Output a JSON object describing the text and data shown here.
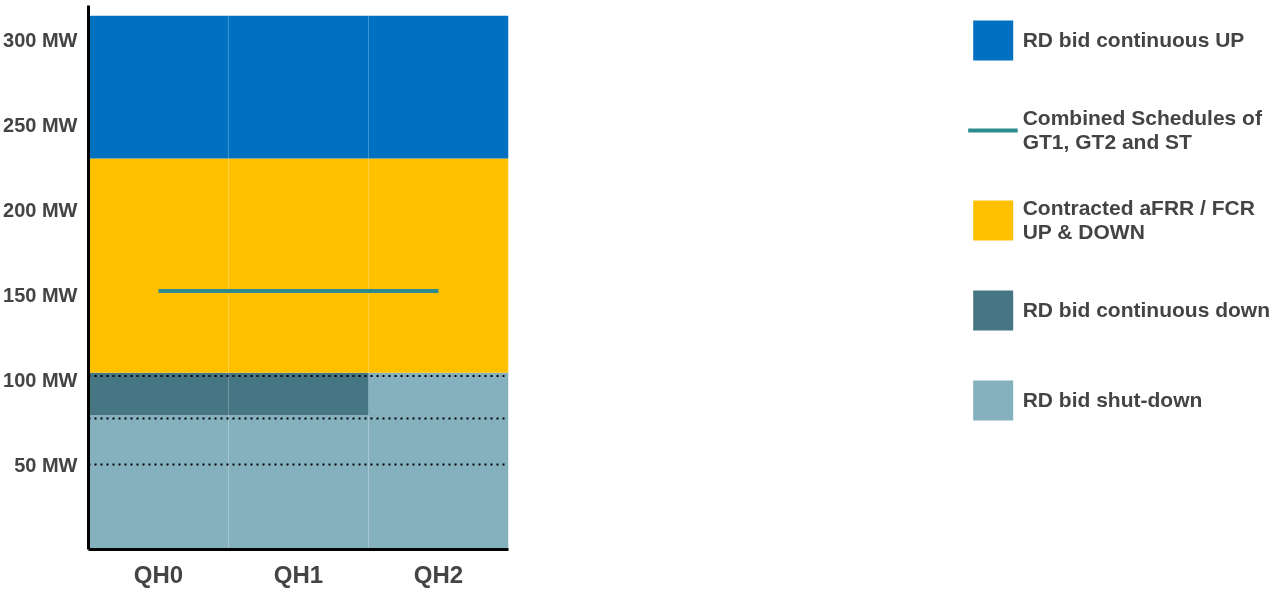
{
  "chart_data": {
    "type": "bar",
    "stacked": true,
    "categories": [
      "QH0",
      "QH1",
      "QH2"
    ],
    "series": [
      {
        "name": "RD bid shut-down",
        "color": "#85b1bf",
        "values": [
          79,
          79,
          104
        ]
      },
      {
        "name": "RD bid continuous down",
        "color": "#467583",
        "values": [
          25,
          25,
          0
        ]
      },
      {
        "name": "Contracted aFRR / FCR UP & DOWN",
        "color": "#ffc000",
        "values": [
          126,
          126,
          126
        ]
      },
      {
        "name": "RD bid continuous UP",
        "color": "#0070c0",
        "values": [
          84,
          84,
          84
        ]
      },
      {
        "name": "Combined Schedules of GT1, GT2 and ST",
        "type": "line",
        "color": "#2e8b8f",
        "values": [
          152,
          152,
          152
        ]
      }
    ],
    "ylim": [
      0,
      320
    ],
    "yticks": [
      {
        "value": 50,
        "label": "50 MW"
      },
      {
        "value": 100,
        "label": "100 MW"
      },
      {
        "value": 150,
        "label": "150 MW"
      },
      {
        "value": 200,
        "label": "200 MW"
      },
      {
        "value": 250,
        "label": "250 MW"
      },
      {
        "value": 300,
        "label": "300 MW"
      }
    ],
    "ref_lines": [
      {
        "axis": "y",
        "value": 50,
        "line_style": "dotted",
        "color": "#000000"
      },
      {
        "axis": "y",
        "value": 77,
        "line_style": "dotted",
        "color": "#000000"
      },
      {
        "axis": "y",
        "value": 102,
        "line_style": "dotted",
        "color": "#000000"
      }
    ],
    "grid": false,
    "legend": "right"
  }
}
